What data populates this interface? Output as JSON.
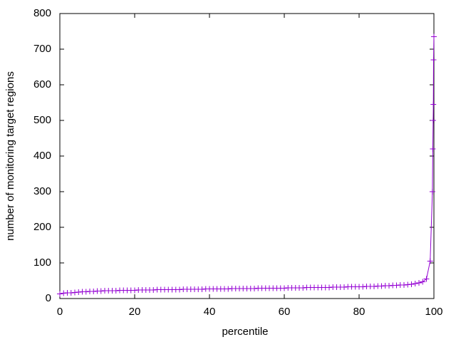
{
  "chart_data": {
    "type": "line",
    "x_label": "percentile",
    "y_label": "number of monitoring target regions",
    "xlim": [
      0,
      100
    ],
    "ylim": [
      0,
      800
    ],
    "xticks": [
      0,
      20,
      40,
      60,
      80,
      100
    ],
    "yticks": [
      0,
      100,
      200,
      300,
      400,
      500,
      600,
      700,
      800
    ],
    "grid": false,
    "series": [
      {
        "color": "#9400d3",
        "x": [
          0,
          1,
          2,
          3,
          4,
          5,
          6,
          7,
          8,
          9,
          10,
          11,
          12,
          13,
          14,
          15,
          16,
          17,
          18,
          19,
          20,
          21,
          22,
          23,
          24,
          25,
          26,
          27,
          28,
          29,
          30,
          31,
          32,
          33,
          34,
          35,
          36,
          37,
          38,
          39,
          40,
          41,
          42,
          43,
          44,
          45,
          46,
          47,
          48,
          49,
          50,
          51,
          52,
          53,
          54,
          55,
          56,
          57,
          58,
          59,
          60,
          61,
          62,
          63,
          64,
          65,
          66,
          67,
          68,
          69,
          70,
          71,
          72,
          73,
          74,
          75,
          76,
          77,
          78,
          79,
          80,
          81,
          82,
          83,
          84,
          85,
          86,
          87,
          88,
          89,
          90,
          91,
          92,
          93,
          94,
          95,
          96,
          97,
          98,
          99,
          99.6,
          99.7,
          99.8,
          99.85,
          99.9,
          100
        ],
        "values": [
          13,
          15,
          16,
          16,
          17,
          18,
          19,
          19,
          20,
          20,
          21,
          21,
          22,
          22,
          22,
          22,
          23,
          23,
          23,
          23,
          23,
          24,
          24,
          24,
          24,
          24,
          25,
          25,
          25,
          25,
          25,
          25,
          25,
          26,
          26,
          26,
          26,
          26,
          26,
          27,
          27,
          27,
          27,
          27,
          27,
          27,
          28,
          28,
          28,
          28,
          28,
          28,
          28,
          29,
          29,
          29,
          29,
          29,
          29,
          29,
          29,
          30,
          30,
          30,
          30,
          30,
          31,
          31,
          31,
          31,
          31,
          31,
          31,
          32,
          32,
          32,
          32,
          33,
          33,
          33,
          33,
          33,
          34,
          34,
          34,
          35,
          35,
          36,
          36,
          37,
          37,
          38,
          38,
          39,
          40,
          42,
          44,
          47,
          55,
          105,
          300,
          420,
          500,
          545,
          670,
          735
        ]
      }
    ]
  }
}
